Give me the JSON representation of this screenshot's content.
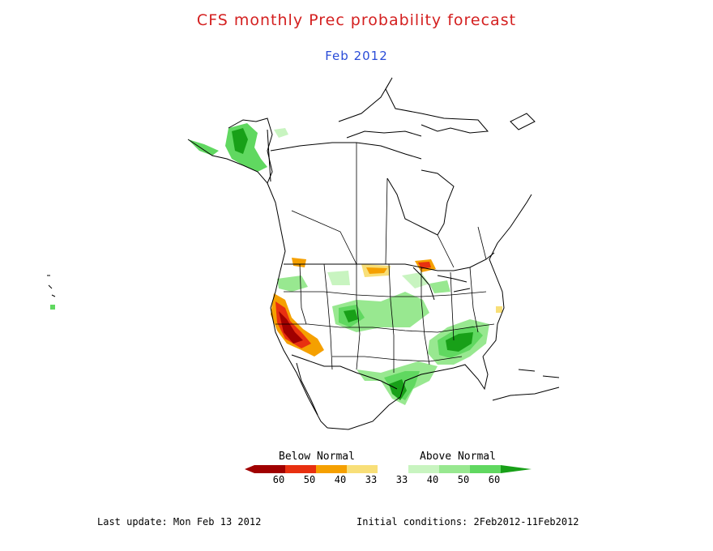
{
  "title": "CFS monthly Prec probability forecast",
  "subtitle": "Feb 2012",
  "legend": {
    "below_label": "Below Normal",
    "above_label": "Above Normal",
    "ticks": [
      "60",
      "50",
      "40",
      "33",
      "33",
      "40",
      "50",
      "60"
    ],
    "colors": {
      "below_60": "#a00000",
      "below_50": "#e83010",
      "below_40": "#f5a000",
      "below_33": "#f8df78",
      "normal": "#ffffff",
      "above_33": "#c8f4c0",
      "above_40": "#98e890",
      "above_50": "#60d860",
      "above_60": "#18a018"
    }
  },
  "map": {
    "region": "North America",
    "layer": "precipitation probability"
  },
  "footer": {
    "last_update": "Last update: Mon Feb 13 2012",
    "initial_conditions": "Initial conditions: 2Feb2012-11Feb2012"
  }
}
